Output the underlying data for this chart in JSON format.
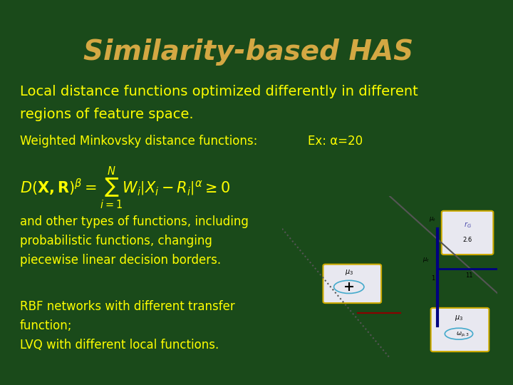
{
  "background_color": "#1a4a1a",
  "title": "Similarity-based HAS",
  "title_color": "#d4a843",
  "title_fontsize": 28,
  "title_fontstyle": "italic",
  "body_color": "#ffff00",
  "body_fontsize": 14,
  "small_fontsize": 12,
  "line1": "Local distance functions optimized differently in different",
  "line2": "regions of feature space.",
  "line3": "Weighted Minkovsky distance functions:",
  "line3b": "Ex: α=20",
  "formula": "$D\\left(\\mathbf{X,R}\\right)^{\\beta}=\\sum_{i=1}^{N}W_i\\left|X_i-R_i\\right|^{\\alpha}\\geq 0$",
  "line4": "and other types of functions, including",
  "line5": "probabilistic functions, changing",
  "line6": "piecewise linear decision borders.",
  "line7": "RBF networks with different transfer",
  "line8": "function;",
  "line9": "LVQ with different local functions."
}
